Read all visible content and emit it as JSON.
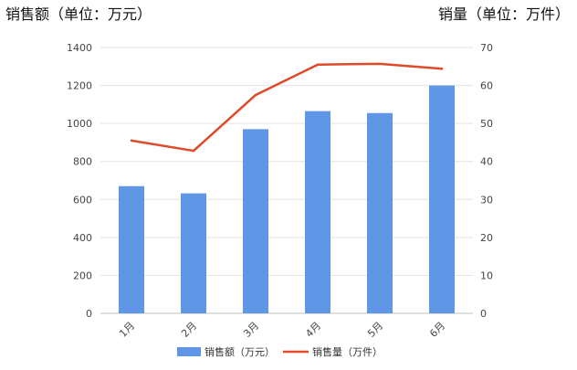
{
  "chart_data": {
    "type": "bar",
    "categories": [
      "1月",
      "2月",
      "3月",
      "4月",
      "5月",
      "6月"
    ],
    "series": [
      {
        "name": "销售额（万元）",
        "type": "bar",
        "axis": "left",
        "values": [
          670,
          632,
          970,
          1065,
          1055,
          1200
        ],
        "color": "#6096e6"
      },
      {
        "name": "销售量（万件）",
        "type": "line",
        "axis": "right",
        "values": [
          45.5,
          42.8,
          57.5,
          65.5,
          65.7,
          64.4
        ],
        "color": "#e0492a"
      }
    ],
    "ylabel": "销售额（单位：万元）",
    "y2label": "销量（单位：万件）",
    "ylim": [
      0,
      1400
    ],
    "y2lim": [
      0,
      70
    ],
    "yticks": [
      0,
      200,
      400,
      600,
      800,
      1000,
      1200,
      1400
    ],
    "y2ticks": [
      0,
      10,
      20,
      30,
      40,
      50,
      60,
      70
    ],
    "grid": true,
    "legend_position": "bottom"
  }
}
